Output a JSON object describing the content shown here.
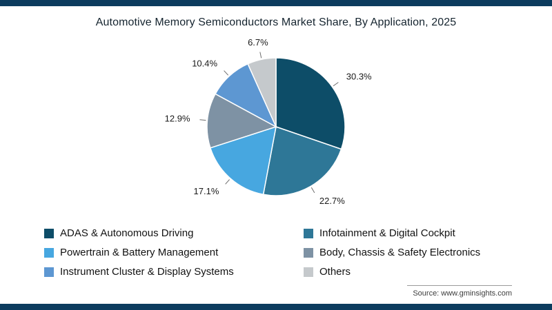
{
  "accent_color": "#0c3c5e",
  "source": "Source: www.gminsights.com",
  "chart_data": {
    "type": "pie",
    "title": "Automotive Memory Semiconductors Market Share, By Application, 2025",
    "legend_position": "bottom",
    "direction": "clockwise",
    "start_angle_deg": 0,
    "slices": [
      {
        "label": "ADAS & Autonomous Driving",
        "value": 30.3,
        "pct_label": "30.3%",
        "color": "#0d4d68"
      },
      {
        "label": "Infotainment & Digital Cockpit",
        "value": 22.7,
        "pct_label": "22.7%",
        "color": "#2e7797"
      },
      {
        "label": "Powertrain & Battery Management",
        "value": 17.1,
        "pct_label": "17.1%",
        "color": "#47a7e0"
      },
      {
        "label": "Body, Chassis & Safety Electronics",
        "value": 12.9,
        "pct_label": "12.9%",
        "color": "#7e92a4"
      },
      {
        "label": "Instrument Cluster & Display Systems",
        "value": 10.4,
        "pct_label": "10.4%",
        "color": "#5d97d2"
      },
      {
        "label": "Others",
        "value": 6.7,
        "pct_label": "6.7%",
        "color": "#c5c9cc"
      }
    ]
  }
}
